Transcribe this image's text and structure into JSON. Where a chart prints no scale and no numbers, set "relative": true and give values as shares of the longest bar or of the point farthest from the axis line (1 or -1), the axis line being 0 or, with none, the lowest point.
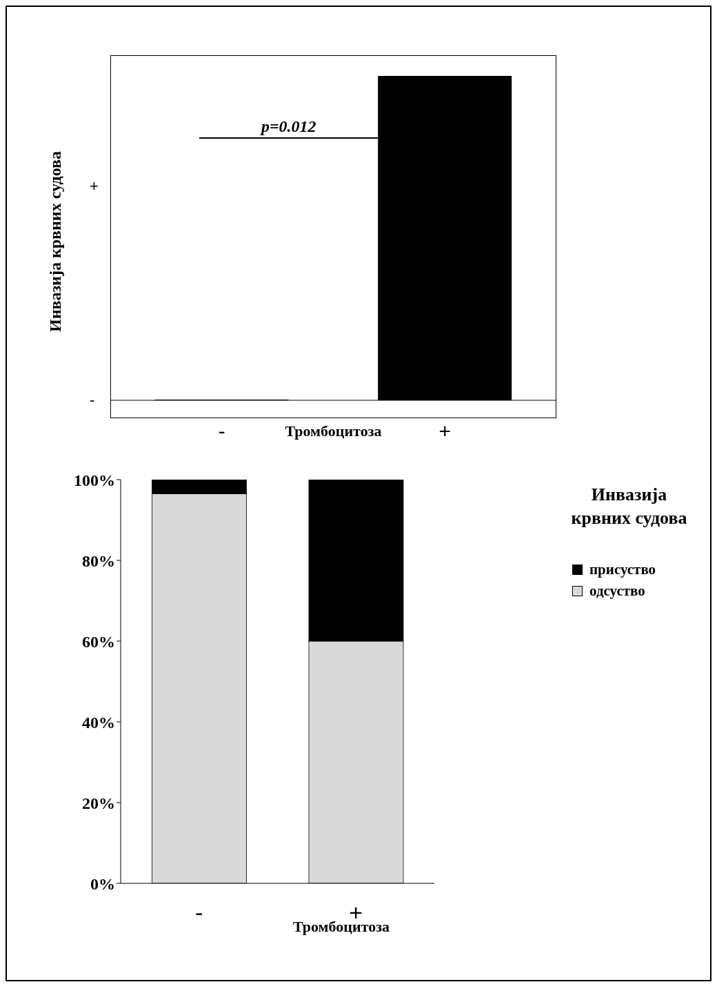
{
  "chart_data": [
    {
      "type": "bar",
      "categories": [
        "-",
        "+"
      ],
      "xlabel": "Тромбоцитоза",
      "ylabel": "Инвазија крвних судова",
      "values": [
        0,
        1
      ],
      "color": "#000000",
      "relative": true,
      "annotations": [
        "p=0.012",
        "-",
        "+"
      ],
      "grid": false,
      "legend": false
    },
    {
      "type": "bar",
      "stacked": true,
      "categories": [
        "-",
        "+"
      ],
      "xlabel": "Тромбоцитоза",
      "legend_title": "Инвазија крвних судова",
      "series": [
        {
          "name": "одсуство",
          "color": "#d9d9d9",
          "values": [
            96.5,
            60
          ]
        },
        {
          "name": "присуство",
          "color": "#000000",
          "values": [
            3.5,
            40
          ]
        }
      ],
      "ylim": [
        0,
        100
      ],
      "yticks": [
        {
          "value": 0,
          "label": "0%"
        },
        {
          "value": 20,
          "label": "20%"
        },
        {
          "value": 40,
          "label": "40%"
        },
        {
          "value": 60,
          "label": "60%"
        },
        {
          "value": 80,
          "label": "80%"
        },
        {
          "value": 100,
          "label": "100%"
        }
      ],
      "grid": false,
      "legend": "right"
    }
  ]
}
